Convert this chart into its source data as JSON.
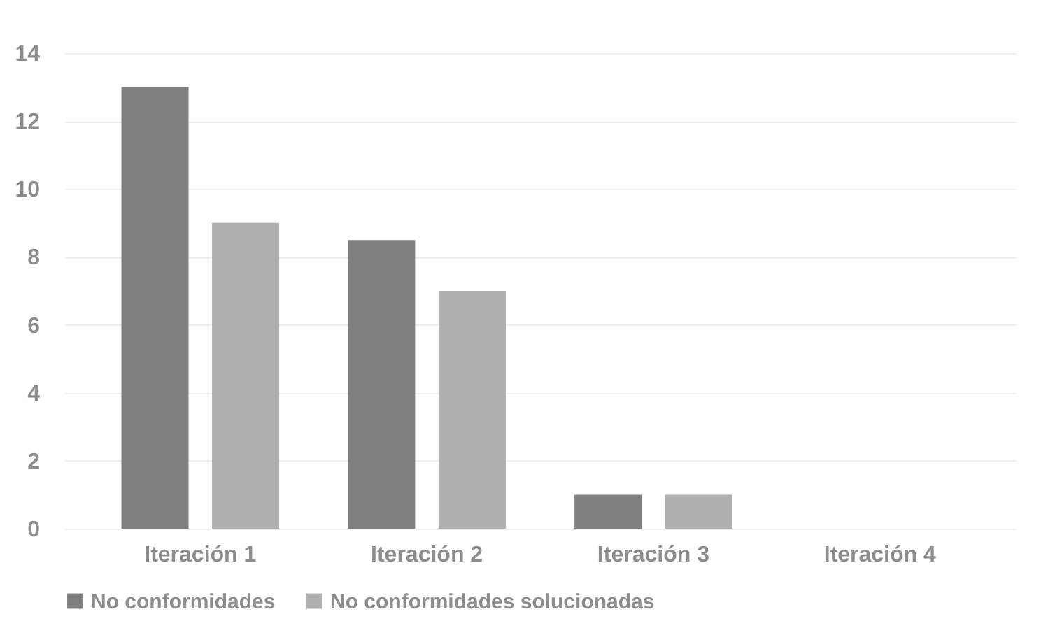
{
  "chart_data": {
    "type": "bar",
    "categories": [
      "Iteración 1",
      "Iteración 2",
      "Iteración 3",
      "Iteración 4"
    ],
    "series": [
      {
        "name": "No conformidades",
        "color": "#7f7f7f",
        "values": [
          13,
          8.5,
          1,
          0
        ]
      },
      {
        "name": "No conformidades solucionadas",
        "color": "#afafaf",
        "values": [
          9,
          7,
          1,
          0
        ]
      }
    ],
    "ylim": [
      0,
      14
    ],
    "yticks": [
      0,
      2,
      4,
      6,
      8,
      10,
      12,
      14
    ],
    "grid": "y",
    "legend": "bottom"
  }
}
